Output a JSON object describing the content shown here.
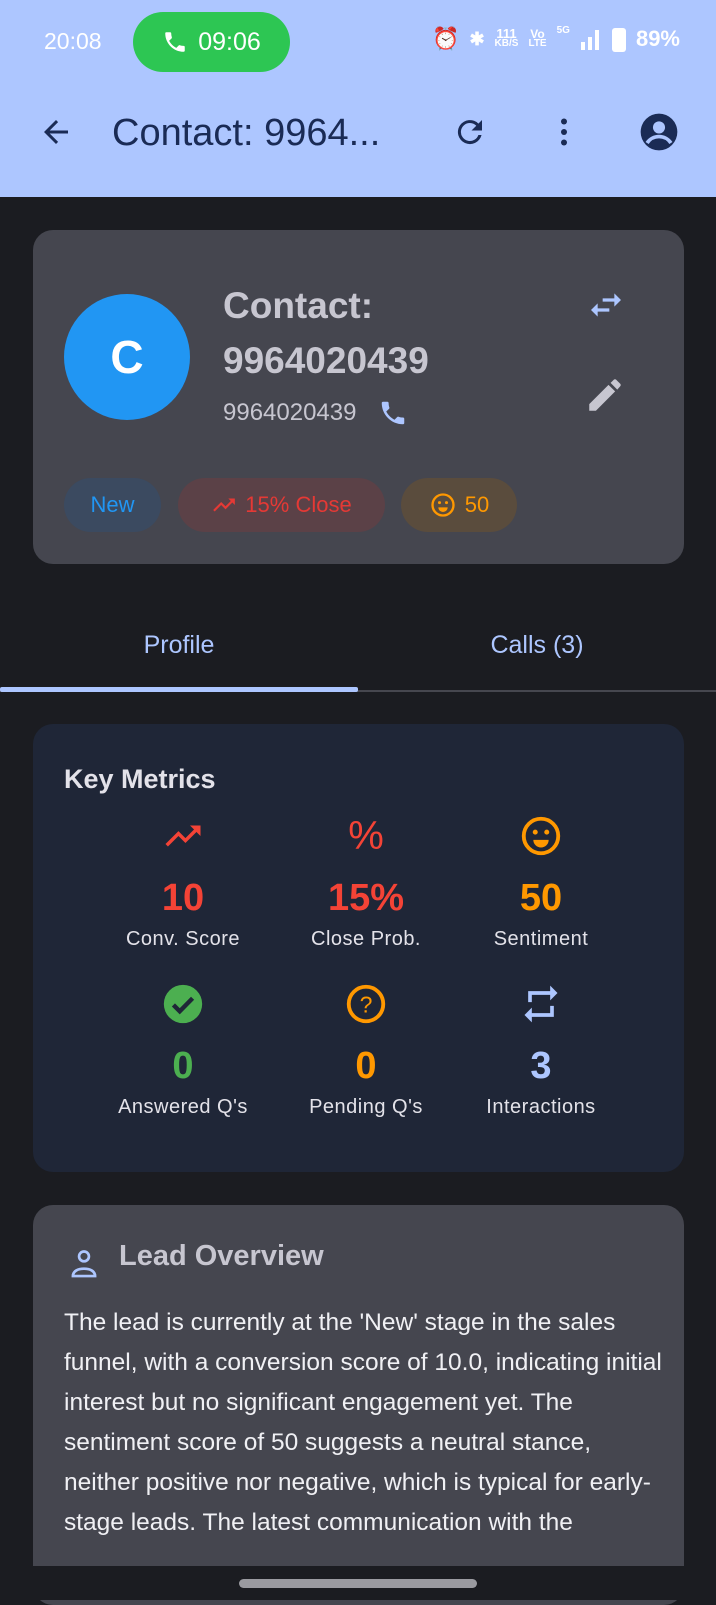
{
  "status_bar": {
    "time": "20:08",
    "call_timer": "09:06",
    "net_speed_top": "111",
    "net_speed_unit": "KB/S",
    "volte_top": "Vo",
    "volte_bottom": "LTE",
    "network": "5G",
    "battery": "89%"
  },
  "app_bar": {
    "title": "Contact: 9964...",
    "icons": [
      "back-arrow-icon",
      "refresh-icon",
      "more-vert-icon",
      "account-circle-icon"
    ]
  },
  "contact": {
    "avatar_letter": "C",
    "name_line1": "Contact:",
    "name_line2": "9964020439",
    "phone": "9964020439",
    "chips": [
      {
        "label": "New",
        "color": "#2196f3"
      },
      {
        "label": "15% Close",
        "color": "#e53935"
      },
      {
        "label": "50",
        "color": "#ff9800"
      }
    ]
  },
  "tabs": [
    {
      "label": "Profile",
      "active": true
    },
    {
      "label": "Calls (3)",
      "active": false
    }
  ],
  "metrics": {
    "title": "Key Metrics",
    "items": [
      {
        "value": "10",
        "label": "Conv. Score",
        "color": "#f44336",
        "icon": "trending-up-icon"
      },
      {
        "value": "15%",
        "label": "Close Prob.",
        "color": "#f44336",
        "icon": "percent-icon"
      },
      {
        "value": "50",
        "label": "Sentiment",
        "color": "#ff9800",
        "icon": "smiley-icon"
      },
      {
        "value": "0",
        "label": "Answered Q's",
        "color": "#4caf50",
        "icon": "check-circle-icon"
      },
      {
        "value": "0",
        "label": "Pending Q's",
        "color": "#ff9800",
        "icon": "help-circle-icon"
      },
      {
        "value": "3",
        "label": "Interactions",
        "color": "#adc6ff",
        "icon": "repeat-icon"
      }
    ]
  },
  "overview": {
    "title": "Lead Overview",
    "text": "The lead is currently at the 'New' stage in the sales funnel, with a conversion score of 10.0, indicating initial interest but no significant engagement yet. The sentiment score of 50 suggests a neutral stance, neither positive nor negative, which is typical for early-stage leads. The latest communication with the"
  }
}
